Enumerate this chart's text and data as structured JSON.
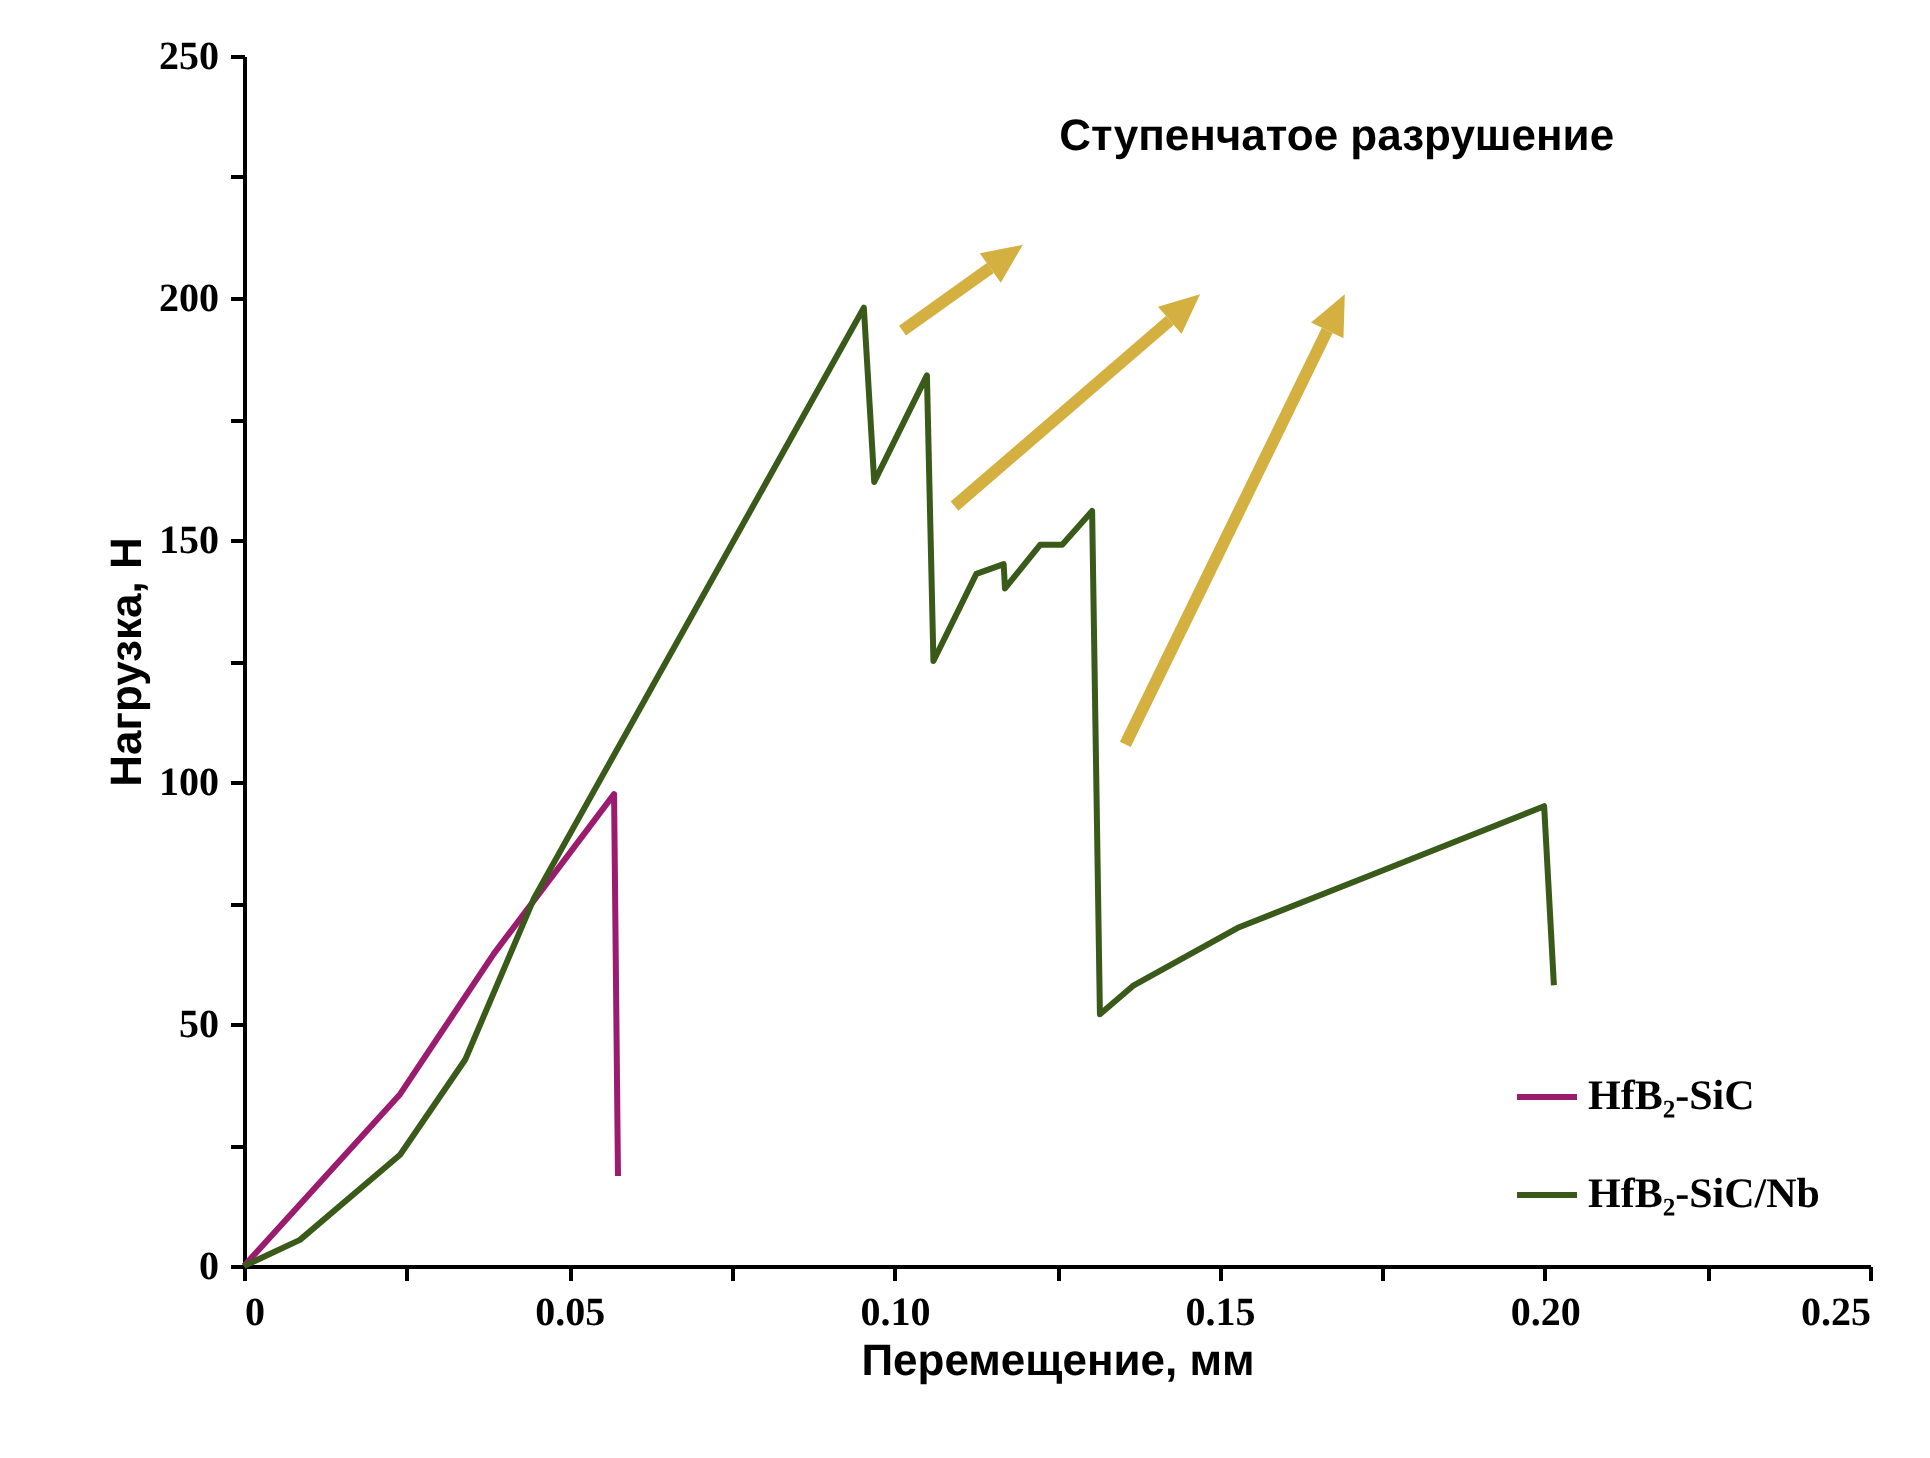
{
  "chart_data": {
    "type": "line",
    "xlabel": "Перемещение, мм",
    "ylabel": "Нагрузка, Н",
    "annotations": [
      "Ступенчатое разрушение"
    ],
    "xlim": [
      0,
      0.25
    ],
    "ylim": [
      0,
      250
    ],
    "xticks": [
      0,
      {
        "value": 0.025,
        "label": null
      },
      0.05,
      {
        "value": 0.075,
        "label": null
      },
      {
        "value": 0.1,
        "label": "0.10"
      },
      {
        "value": 0.125,
        "label": null
      },
      0.15,
      {
        "value": 0.175,
        "label": null
      },
      {
        "value": 0.2,
        "label": "0.20"
      },
      {
        "value": 0.225,
        "label": null
      },
      0.25
    ],
    "yticks": [
      0,
      {
        "value": 25,
        "label": null
      },
      50,
      {
        "value": 75,
        "label": null
      },
      100,
      {
        "value": 125,
        "label": null
      },
      150,
      {
        "value": 175,
        "label": null
      },
      200,
      {
        "value": 225,
        "label": null
      },
      250
    ],
    "series": [
      {
        "name": "HfB₂-SiC",
        "color": "#9b1b6e",
        "x": [
          0,
          0.024,
          0.0384,
          0.0569,
          0.0575
        ],
        "values": [
          0,
          35.5,
          64.5,
          97.5,
          18.6
        ]
      },
      {
        "name": "HfB₂-SiC/Nb",
        "color": "#3a5a1a",
        "x": [
          0,
          0.0086,
          0.024,
          0.034,
          0.0446,
          0.0953,
          0.0969,
          0.105,
          0.106,
          0.1126,
          0.1168,
          0.117,
          0.1224,
          0.1258,
          0.1304,
          0.1316,
          0.1368,
          0.153,
          0.1737,
          0.1999,
          0.2014
        ],
        "values": [
          0,
          5.4,
          23,
          42.6,
          76,
          198,
          162,
          184,
          125,
          143,
          145,
          140,
          149,
          149,
          156,
          52,
          58,
          70,
          81,
          95,
          58
        ]
      }
    ],
    "legend": "bottom right",
    "grid": false,
    "marker": "none",
    "line_style": "solid"
  }
}
